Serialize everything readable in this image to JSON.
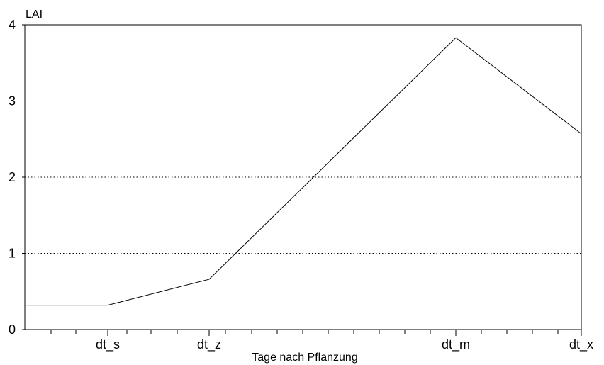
{
  "chart_data": {
    "type": "line",
    "title": "",
    "ylabel": "LAI",
    "xlabel": "Tage nach Pflanzung",
    "ylim": [
      0,
      4
    ],
    "yticks": [
      "0",
      "1",
      "2",
      "3",
      "4"
    ],
    "xticks": [
      "dt_s",
      "dt_z",
      "dt_m",
      "dt_x"
    ],
    "grid": "dotted horizontal at 1, 2, 3",
    "series": [
      {
        "points": [
          {
            "x": "start",
            "y": 0.32
          },
          {
            "x": "dt_s",
            "y": 0.32
          },
          {
            "x": "dt_z",
            "y": 0.66
          },
          {
            "x": "dt_m",
            "y": 3.83
          },
          {
            "x": "dt_x",
            "y": 2.57
          }
        ]
      }
    ],
    "colors": {
      "line": "#000000",
      "grid": "#000000",
      "frame": "#000000"
    }
  }
}
